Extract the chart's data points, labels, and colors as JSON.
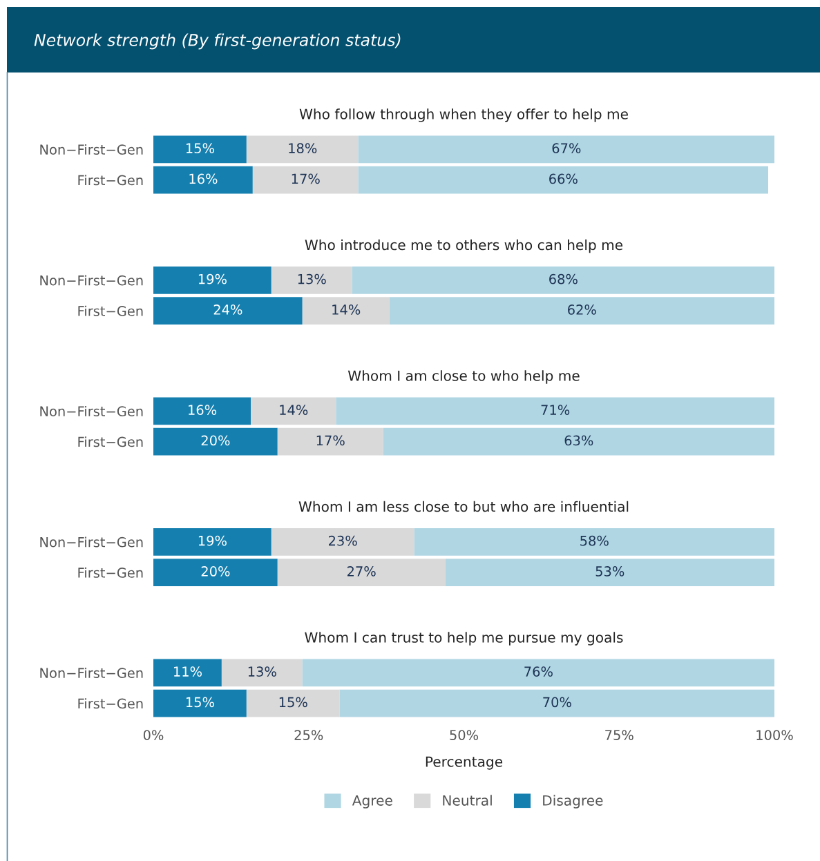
{
  "chart_data": [
    {
      "type": "bar",
      "orientation": "horizontal",
      "stacked": true,
      "title": "Network strength (By first-generation status)",
      "subtitle": "Who follow through when they offer to help me",
      "categories": [
        "Non−First−Gen",
        "First−Gen"
      ],
      "series": [
        {
          "color": "#1580b0",
          "values": [
            15,
            16
          ],
          "value_labels": [
            "15%",
            "16%"
          ]
        },
        {
          "color": "#d9d9d9",
          "values": [
            18,
            17
          ],
          "value_labels": [
            "18%",
            "17%"
          ]
        },
        {
          "color": "#b0d6e3",
          "values": [
            67,
            66
          ],
          "value_labels": [
            "67%",
            "66%"
          ]
        }
      ],
      "xlim": [
        0,
        100
      ],
      "tick_labels": "y",
      "grid": false,
      "legend": false
    },
    {
      "type": "bar",
      "orientation": "horizontal",
      "stacked": true,
      "subtitle": "Who introduce me to others who can help me",
      "categories": [
        "Non−First−Gen",
        "First−Gen"
      ],
      "series": [
        {
          "color": "#1580b0",
          "values": [
            19,
            24
          ],
          "value_labels": [
            "19%",
            "24%"
          ]
        },
        {
          "color": "#d9d9d9",
          "values": [
            13,
            14
          ],
          "value_labels": [
            "13%",
            "14%"
          ]
        },
        {
          "color": "#b0d6e3",
          "values": [
            68,
            62
          ],
          "value_labels": [
            "68%",
            "62%"
          ]
        }
      ],
      "xlim": [
        0,
        100
      ],
      "tick_labels": "y",
      "grid": false,
      "legend": false
    },
    {
      "type": "bar",
      "orientation": "horizontal",
      "stacked": true,
      "subtitle": "Whom I am close to who help me",
      "categories": [
        "Non−First−Gen",
        "First−Gen"
      ],
      "series": [
        {
          "color": "#1580b0",
          "values": [
            15.7,
            20
          ],
          "value_labels": [
            "16%",
            "20%"
          ]
        },
        {
          "color": "#d9d9d9",
          "values": [
            13.7,
            17
          ],
          "value_labels": [
            "14%",
            "17%"
          ]
        },
        {
          "color": "#b0d6e3",
          "values": [
            70.6,
            63
          ],
          "value_labels": [
            "71%",
            "63%"
          ]
        }
      ],
      "xlim": [
        0,
        100
      ],
      "tick_labels": "y",
      "grid": false,
      "legend": false
    },
    {
      "type": "bar",
      "orientation": "horizontal",
      "stacked": true,
      "subtitle": "Whom I am less close to but who are influential",
      "categories": [
        "Non−First−Gen",
        "First−Gen"
      ],
      "series": [
        {
          "color": "#1580b0",
          "values": [
            19,
            20
          ],
          "value_labels": [
            "19%",
            "20%"
          ]
        },
        {
          "color": "#d9d9d9",
          "values": [
            23,
            27
          ],
          "value_labels": [
            "23%",
            "27%"
          ]
        },
        {
          "color": "#b0d6e3",
          "values": [
            58,
            53
          ],
          "value_labels": [
            "58%",
            "53%"
          ]
        }
      ],
      "xlim": [
        0,
        100
      ],
      "tick_labels": "y",
      "grid": false,
      "legend": false
    },
    {
      "type": "bar",
      "orientation": "horizontal",
      "stacked": true,
      "subtitle": "Whom I can trust to help me pursue my goals",
      "xlabel": "Percentage",
      "categories": [
        "Non−First−Gen",
        "First−Gen"
      ],
      "series": [
        {
          "name": "Disagree",
          "color": "#1580b0",
          "values": [
            11,
            15
          ],
          "value_labels": [
            "11%",
            "15%"
          ]
        },
        {
          "name": "Neutral",
          "color": "#d9d9d9",
          "values": [
            13,
            15
          ],
          "value_labels": [
            "13%",
            "15%"
          ]
        },
        {
          "name": "Agree",
          "color": "#b0d6e3",
          "values": [
            76,
            70
          ],
          "value_labels": [
            "76%",
            "70%"
          ]
        }
      ],
      "xlim": [
        0,
        100
      ],
      "xticks": [
        {
          "value": 0,
          "label": "0%"
        },
        {
          "value": 25,
          "label": "25%"
        },
        {
          "value": 50,
          "label": "50%"
        },
        {
          "value": 75,
          "label": "75%"
        },
        {
          "value": 100,
          "label": "100%"
        }
      ],
      "grid": false,
      "legend": "bottom"
    }
  ]
}
